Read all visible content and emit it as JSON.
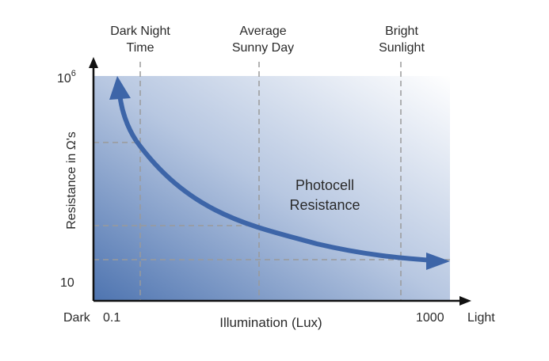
{
  "chart_data": {
    "type": "line",
    "title": "",
    "xlabel": "Illumination (Lux)",
    "ylabel": "Resistance in Ω's",
    "x_scale": "log",
    "xlim": [
      0.1,
      1000
    ],
    "x_end_labels": {
      "left": "Dark",
      "right": "Light"
    },
    "x_tick_labels": [
      "0.1",
      "1000"
    ],
    "y_tick_labels": {
      "top_base": "10",
      "top_exponent": "6",
      "bottom": "10"
    },
    "reference_lines": [
      {
        "label_lines": [
          "Dark Night",
          "Time"
        ]
      },
      {
        "label_lines": [
          "Average",
          "Sunny Day"
        ]
      },
      {
        "label_lines": [
          "Bright",
          "Sunlight"
        ]
      }
    ],
    "series": [
      {
        "name": "Photocell Resistance",
        "label_lines": [
          "Photocell",
          "Resistance"
        ],
        "color": "#3d65a8"
      }
    ],
    "grid": "dashed reference lines",
    "fill_gradient": [
      "#4e74b0",
      "#ffffff"
    ]
  }
}
